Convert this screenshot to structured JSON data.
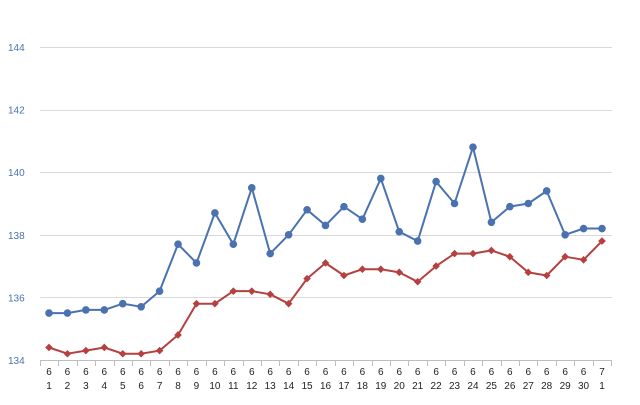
{
  "chart_data": {
    "type": "line",
    "title": "",
    "xlabel": "",
    "ylabel": "",
    "ylim": [
      134,
      144
    ],
    "yticks": [
      "134",
      "136",
      "138",
      "140",
      "142",
      "144"
    ],
    "grid": true,
    "categories": [
      [
        "6",
        "1"
      ],
      [
        "6",
        "2"
      ],
      [
        "6",
        "3"
      ],
      [
        "6",
        "4"
      ],
      [
        "6",
        "5"
      ],
      [
        "6",
        "6"
      ],
      [
        "6",
        "7"
      ],
      [
        "6",
        "8"
      ],
      [
        "6",
        "9"
      ],
      [
        "6",
        "10"
      ],
      [
        "6",
        "11"
      ],
      [
        "6",
        "12"
      ],
      [
        "6",
        "13"
      ],
      [
        "6",
        "14"
      ],
      [
        "6",
        "15"
      ],
      [
        "6",
        "16"
      ],
      [
        "6",
        "17"
      ],
      [
        "6",
        "18"
      ],
      [
        "6",
        "19"
      ],
      [
        "6",
        "20"
      ],
      [
        "6",
        "21"
      ],
      [
        "6",
        "22"
      ],
      [
        "6",
        "23"
      ],
      [
        "6",
        "24"
      ],
      [
        "6",
        "25"
      ],
      [
        "6",
        "26"
      ],
      [
        "6",
        "27"
      ],
      [
        "6",
        "28"
      ],
      [
        "6",
        "29"
      ],
      [
        "6",
        "30"
      ],
      [
        "7",
        "1"
      ]
    ],
    "series": [
      {
        "color": "#4a72b0",
        "marker": "circle",
        "values": [
          135.5,
          135.5,
          135.6,
          135.6,
          135.8,
          135.7,
          136.2,
          137.7,
          137.1,
          138.7,
          137.7,
          139.5,
          137.4,
          138.0,
          138.8,
          138.3,
          138.9,
          138.5,
          139.8,
          138.1,
          137.8,
          139.7,
          139.0,
          140.8,
          138.4,
          138.9,
          139.0,
          139.4,
          138.0,
          138.2,
          138.2
        ]
      },
      {
        "color": "#b5403f",
        "marker": "diamond",
        "values": [
          134.4,
          134.2,
          134.3,
          134.4,
          134.2,
          134.2,
          134.3,
          134.8,
          135.8,
          135.8,
          136.2,
          136.2,
          136.1,
          135.8,
          136.6,
          137.1,
          136.7,
          136.9,
          136.9,
          136.8,
          136.5,
          137.0,
          137.4,
          137.4,
          137.5,
          137.3,
          136.8,
          136.7,
          137.3,
          137.2,
          137.8
        ]
      }
    ]
  }
}
